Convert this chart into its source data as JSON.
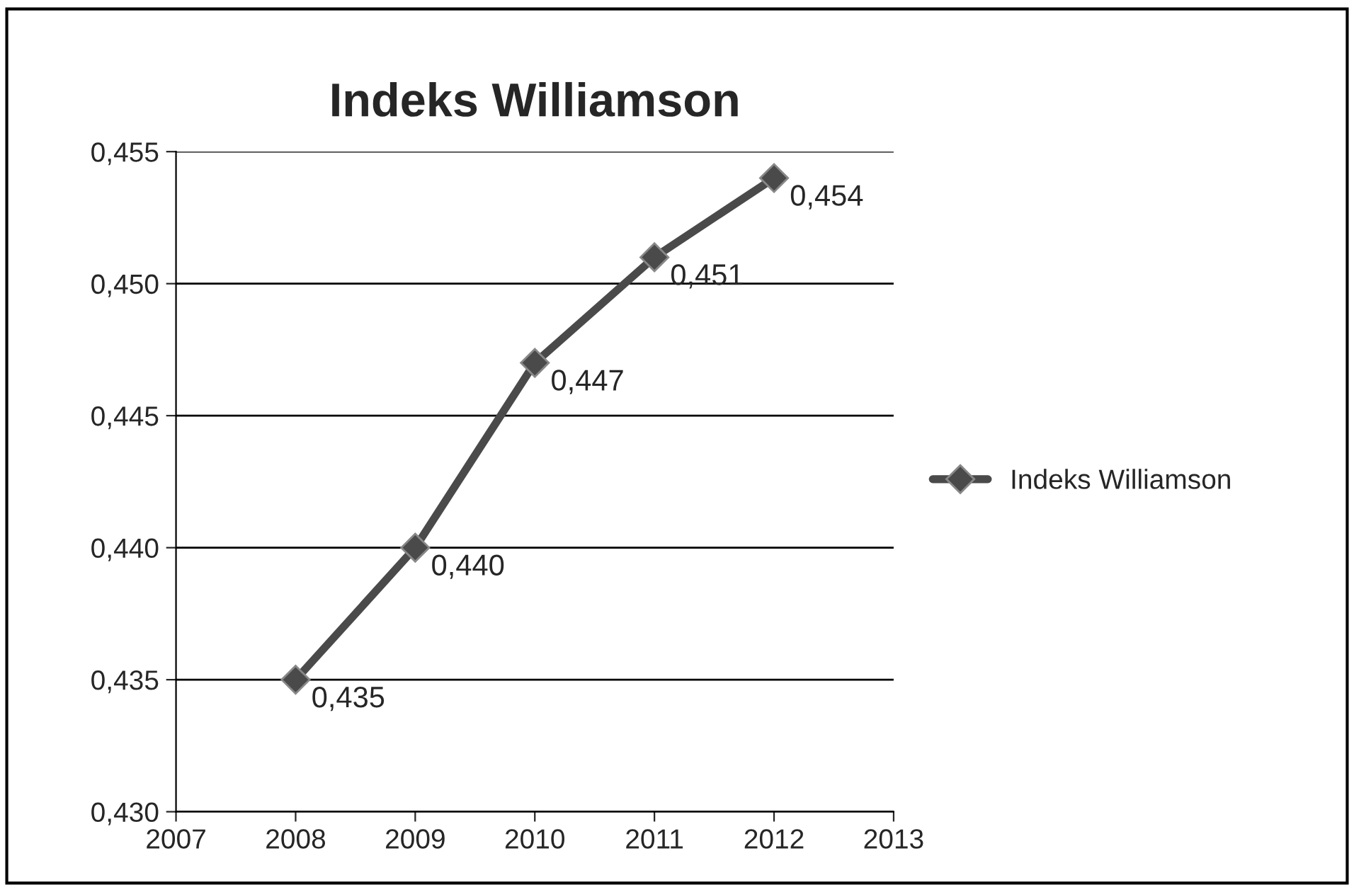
{
  "chart_data": {
    "type": "line",
    "title": "Indeks Williamson",
    "x": [
      2008,
      2009,
      2010,
      2011,
      2012
    ],
    "series": [
      {
        "name": "Indeks Williamson",
        "color": "#4a4a4a",
        "values": [
          0.435,
          0.44,
          0.447,
          0.451,
          0.454
        ],
        "value_labels": [
          "0,435",
          "0,440",
          "0,447",
          "0,451",
          "0,454"
        ]
      }
    ],
    "xlim": [
      2007,
      2013
    ],
    "xticks": [
      2007,
      2008,
      2009,
      2010,
      2011,
      2012,
      2013
    ],
    "ylim": [
      0.43,
      0.455
    ],
    "yticks": [
      {
        "value": 0.43,
        "label": "0,430"
      },
      {
        "value": 0.435,
        "label": "0,435"
      },
      {
        "value": 0.44,
        "label": "0,440"
      },
      {
        "value": 0.445,
        "label": "0,445"
      },
      {
        "value": 0.45,
        "label": "0,450"
      },
      {
        "value": 0.455,
        "label": "0,455"
      }
    ],
    "grid": "y",
    "legend": "right",
    "marker": "diamond",
    "line_style": "solid"
  }
}
